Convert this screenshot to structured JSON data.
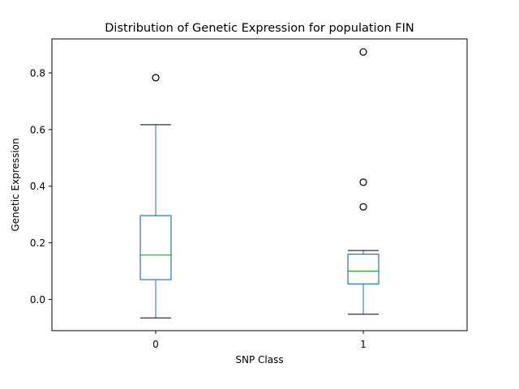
{
  "chart_data": {
    "type": "box",
    "title": "Distribution of Genetic Expression for population FIN",
    "xlabel": "SNP Class",
    "ylabel": "Genetic Expression",
    "categories": [
      "0",
      "1"
    ],
    "ylim": [
      -0.11,
      0.92
    ],
    "yticks": [
      "0.0",
      "0.2",
      "0.4",
      "0.6",
      "0.8"
    ],
    "ytick_values": [
      0.0,
      0.2,
      0.4,
      0.6,
      0.8
    ],
    "grid": false,
    "boxes": [
      {
        "category": "0",
        "whisker_low": -0.065,
        "q1": 0.07,
        "median": 0.157,
        "q3": 0.296,
        "whisker_high": 0.617,
        "outliers": [
          0.783
        ]
      },
      {
        "category": "1",
        "whisker_low": -0.052,
        "q1": 0.055,
        "median": 0.1,
        "q3": 0.16,
        "whisker_high": 0.173,
        "outliers": [
          0.874,
          0.414,
          0.327
        ]
      }
    ],
    "colors": {
      "box": "#1f77b4",
      "median": "#2ca02c",
      "whisker_cap": "#000000",
      "outlier": "#000000"
    }
  }
}
